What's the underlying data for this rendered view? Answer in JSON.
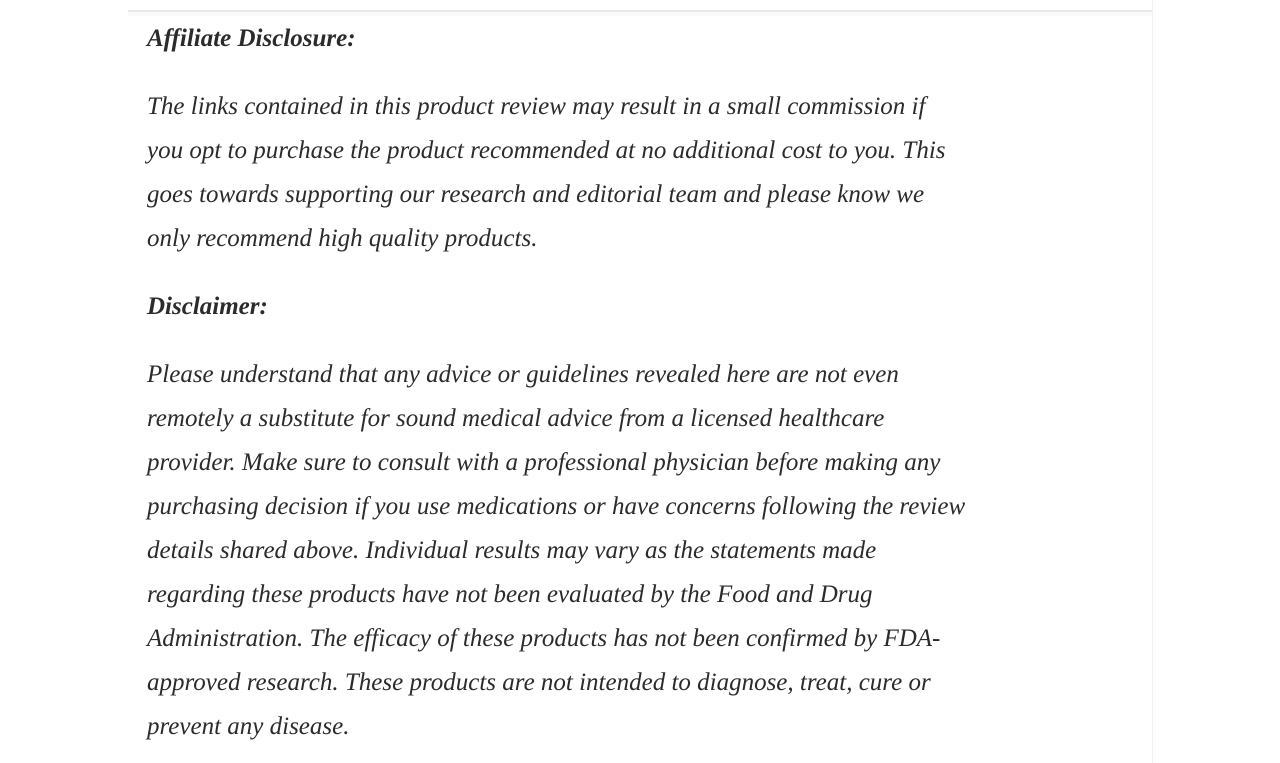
{
  "article": {
    "affiliate_heading": "Affiliate Disclosure:",
    "affiliate_paragraph_lines": [
      "The links contained in this product review may result in a small commission if",
      "you opt to purchase the product recommended at no additional cost to you. This",
      "goes towards supporting our research and editorial team and please know we",
      "only recommend high quality products."
    ],
    "disclaimer_heading": "Disclaimer:",
    "disclaimer_paragraph_lines": [
      "Please understand that any advice or guidelines revealed here are not even",
      "remotely a substitute for sound medical advice from a licensed healthcare",
      "provider. Make sure to consult with a professional physician before making any",
      "purchasing decision if you use medications or have concerns following the review",
      "details shared above. Individual results may vary as the statements made",
      "regarding these products have not been evaluated by the Food and Drug",
      "Administration. The efficacy of these products has not been confirmed by FDA-",
      "approved research. These products are not intended to diagnose, treat, cure or",
      "prevent any disease."
    ]
  },
  "colors": {
    "text": "#2b2b2b",
    "background": "#ffffff",
    "divider": "#e9e9e9"
  }
}
